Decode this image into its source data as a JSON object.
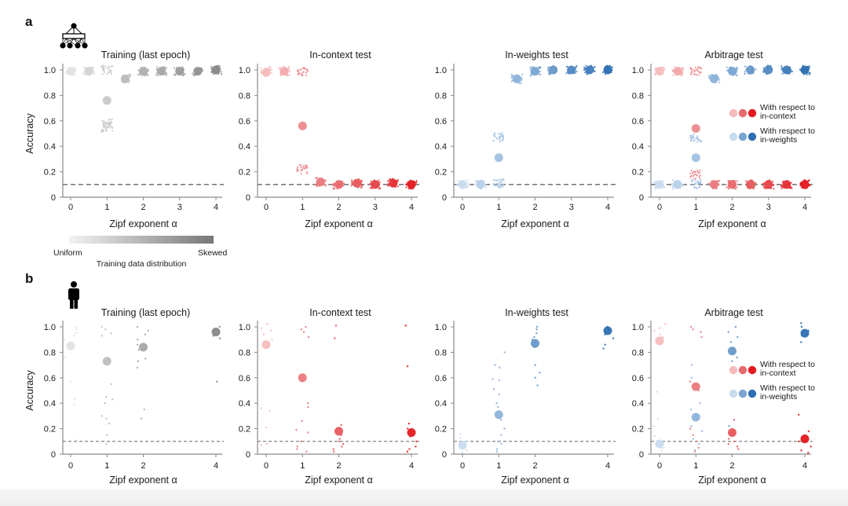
{
  "figure": {
    "panel_letters": [
      "a",
      "b"
    ],
    "row_icons": [
      "neural-network-icon",
      "person-icon"
    ],
    "colorbar": {
      "left_label": "Uniform",
      "right_label": "Skewed",
      "title": "Training data distribution"
    },
    "legend": {
      "in_context_label_1": "With respect to",
      "in_context_label_2": "in-context",
      "in_weights_label_1": "With respect to",
      "in_weights_label_2": "in-weights"
    },
    "colors": {
      "gray": [
        "#e2e2e2",
        "#d3d3d3",
        "#c8c8c8",
        "#bdbdbd",
        "#b0b0b0",
        "#a7a7a7",
        "#9c9c9c",
        "#929292",
        "#888888"
      ],
      "red": [
        "#f5bcbd",
        "#f2a9ab",
        "#ec8a8d",
        "#ea7a7e",
        "#e8696d",
        "#e6585c",
        "#e54449",
        "#e32f35",
        "#e31a20"
      ],
      "blue": [
        "#c9dcee",
        "#b8d0ea",
        "#a0c0e2",
        "#8db2da",
        "#7aa5d2",
        "#6898c9",
        "#5289c1",
        "#3f7cba",
        "#2e6fb2"
      ],
      "chance_line": "#666666"
    }
  },
  "chart_data": [
    {
      "id": "a-training",
      "type": "scatter",
      "title": "Training (last epoch)",
      "xlabel": "Zipf exponent α",
      "ylabel": "Accuracy",
      "xticks": [
        "0",
        "1",
        "2",
        "3",
        "4"
      ],
      "yticks": [
        "0",
        "0.2",
        "0.4",
        "0.6",
        "0.8",
        "1.0"
      ],
      "xlim": [
        -0.2,
        4.2
      ],
      "ylim": [
        0,
        1.05
      ],
      "chance": 0.1,
      "palette": "gray",
      "series": [
        {
          "name": "Training",
          "x": [
            0,
            0.5,
            1,
            1.5,
            2,
            2.5,
            3,
            3.5,
            4
          ],
          "means": [
            0.99,
            0.99,
            0.76,
            0.93,
            0.99,
            0.99,
            0.99,
            0.99,
            1.0
          ],
          "clusters": [
            [
              0.99
            ],
            [
              0.99
            ],
            [
              1.0,
              0.58,
              0.55
            ],
            [
              0.93
            ],
            [
              0.99
            ],
            [
              0.99
            ],
            [
              0.99
            ],
            [
              0.99
            ],
            [
              1.0
            ]
          ]
        }
      ]
    },
    {
      "id": "a-in-context",
      "type": "scatter",
      "title": "In-context test",
      "xlabel": "Zipf exponent α",
      "ylabel": "",
      "xticks": [
        "0",
        "1",
        "2",
        "3",
        "4"
      ],
      "yticks": [
        "0",
        "0.2",
        "0.4",
        "0.6",
        "0.8",
        "1.0"
      ],
      "xlim": [
        -0.2,
        4.2
      ],
      "ylim": [
        0,
        1.05
      ],
      "chance": 0.1,
      "palette": "red",
      "series": [
        {
          "name": "In-context",
          "x": [
            0,
            0.5,
            1,
            1.5,
            2,
            2.5,
            3,
            3.5,
            4
          ],
          "means": [
            0.98,
            0.99,
            0.56,
            0.12,
            0.1,
            0.11,
            0.1,
            0.11,
            0.1
          ],
          "clusters": [
            [
              0.99
            ],
            [
              0.99
            ],
            [
              0.99,
              0.22
            ],
            [
              0.12
            ],
            [
              0.1
            ],
            [
              0.11
            ],
            [
              0.1
            ],
            [
              0.11
            ],
            [
              0.1
            ]
          ]
        }
      ]
    },
    {
      "id": "a-in-weights",
      "type": "scatter",
      "title": "In-weights test",
      "xlabel": "Zipf exponent α",
      "ylabel": "",
      "xticks": [
        "0",
        "1",
        "2",
        "3",
        "4"
      ],
      "yticks": [
        "0",
        "0.2",
        "0.4",
        "0.6",
        "0.8",
        "1.0"
      ],
      "xlim": [
        -0.2,
        4.2
      ],
      "ylim": [
        0,
        1.05
      ],
      "chance": 0.1,
      "palette": "blue",
      "series": [
        {
          "name": "In-weights",
          "x": [
            0,
            0.5,
            1,
            1.5,
            2,
            2.5,
            3,
            3.5,
            4
          ],
          "means": [
            0.1,
            0.1,
            0.31,
            0.93,
            0.99,
            1.0,
            1.0,
            1.0,
            1.0
          ],
          "clusters": [
            [
              0.1
            ],
            [
              0.1
            ],
            [
              0.47,
              0.11
            ],
            [
              0.93
            ],
            [
              0.99
            ],
            [
              1.0
            ],
            [
              1.0
            ],
            [
              1.0
            ],
            [
              1.0
            ]
          ]
        }
      ]
    },
    {
      "id": "a-arbitrage",
      "type": "scatter",
      "title": "Arbitrage test",
      "xlabel": "Zipf exponent α",
      "ylabel": "",
      "xticks": [
        "0",
        "1",
        "2",
        "3",
        "4"
      ],
      "yticks": [
        "0",
        "0.2",
        "0.4",
        "0.6",
        "0.8",
        "1.0"
      ],
      "xlim": [
        -0.2,
        4.2
      ],
      "ylim": [
        0,
        1.05
      ],
      "chance": 0.1,
      "legend": "right",
      "series": [
        {
          "name": "With respect to in-context",
          "palette": "red",
          "x": [
            0,
            0.5,
            1,
            1.5,
            2,
            2.5,
            3,
            3.5,
            4
          ],
          "means": [
            0.99,
            0.99,
            0.54,
            0.1,
            0.1,
            0.1,
            0.1,
            0.1,
            0.1
          ],
          "clusters": [
            [
              0.99
            ],
            [
              0.99
            ],
            [
              0.99,
              0.18
            ],
            [
              0.1
            ],
            [
              0.1
            ],
            [
              0.1
            ],
            [
              0.1
            ],
            [
              0.1
            ],
            [
              0.1
            ]
          ]
        },
        {
          "name": "With respect to in-weights",
          "palette": "blue",
          "x": [
            0,
            0.5,
            1,
            1.5,
            2,
            2.5,
            3,
            3.5,
            4
          ],
          "means": [
            0.1,
            0.1,
            0.31,
            0.93,
            0.99,
            1.0,
            1.0,
            1.0,
            1.0
          ],
          "clusters": [
            [
              0.1
            ],
            [
              0.1
            ],
            [
              0.46,
              0.1
            ],
            [
              0.93
            ],
            [
              0.99
            ],
            [
              1.0
            ],
            [
              1.0
            ],
            [
              1.0
            ],
            [
              1.0
            ]
          ]
        }
      ]
    },
    {
      "id": "b-training",
      "type": "scatter",
      "title": "Training (last epoch)",
      "xlabel": "Zipf exponent α",
      "ylabel": "Accuracy",
      "xticks": [
        "0",
        "1",
        "2",
        "4"
      ],
      "xtick_values": [
        0,
        1,
        2,
        4
      ],
      "yticks": [
        "0",
        "0.2",
        "0.4",
        "0.6",
        "0.8",
        "1.0"
      ],
      "xlim": [
        -0.2,
        4.2
      ],
      "ylim": [
        0,
        1.05
      ],
      "chance": 0.1,
      "palette": "gray",
      "series": [
        {
          "name": "Training",
          "x": [
            0,
            1,
            2,
            4
          ],
          "means": [
            0.85,
            0.73,
            0.84,
            0.96
          ],
          "scatter": [
            [
              1.0,
              0.98,
              0.95,
              0.93,
              0.9,
              0.76,
              0.57,
              0.43,
              0.39,
              0.11
            ],
            [
              1.0,
              0.98,
              0.95,
              0.93,
              0.55,
              0.45,
              0.43,
              0.4,
              0.3,
              0.28,
              0.24,
              0.15,
              0.08
            ],
            [
              1.0,
              0.97,
              0.94,
              0.9,
              0.86,
              0.82,
              0.75,
              0.73,
              0.68,
              0.35,
              0.28
            ],
            [
              1.0,
              0.98,
              0.95,
              0.93,
              0.91,
              0.57
            ]
          ]
        }
      ]
    },
    {
      "id": "b-in-context",
      "type": "scatter",
      "title": "In-context test",
      "xlabel": "Zipf exponent α",
      "ylabel": "",
      "xticks": [
        "0",
        "1",
        "2",
        "4"
      ],
      "xtick_values": [
        0,
        1,
        2,
        4
      ],
      "yticks": [
        "0",
        "0.2",
        "0.4",
        "0.6",
        "0.8",
        "1.0"
      ],
      "xlim": [
        -0.2,
        4.2
      ],
      "ylim": [
        0,
        1.05
      ],
      "chance": 0.1,
      "palette": "red",
      "series": [
        {
          "name": "In-context",
          "x": [
            0,
            1,
            2,
            4
          ],
          "means": [
            0.86,
            0.6,
            0.18,
            0.17
          ],
          "scatter": [
            [
              1.02,
              0.99,
              0.97,
              0.94,
              0.9,
              0.36,
              0.34,
              0.21,
              0.08,
              0.07
            ],
            [
              1.0,
              0.98,
              0.96,
              0.92,
              0.4,
              0.37,
              0.26,
              0.19,
              0.17,
              0.1,
              0.06,
              0.04,
              0.02
            ],
            [
              1.01,
              0.91,
              0.23,
              0.15,
              0.12,
              0.1,
              0.08,
              0.06,
              0.04,
              0.02
            ],
            [
              1.01,
              0.69,
              0.24,
              0.2,
              0.14,
              0.1,
              0.06,
              0.04,
              0.02
            ]
          ]
        }
      ]
    },
    {
      "id": "b-in-weights",
      "type": "scatter",
      "title": "In-weights test",
      "xlabel": "Zipf exponent α",
      "ylabel": "",
      "xticks": [
        "0",
        "1",
        "2",
        "4"
      ],
      "xtick_values": [
        0,
        1,
        2,
        4
      ],
      "yticks": [
        "0",
        "0.2",
        "0.4",
        "0.6",
        "0.8",
        "1.0"
      ],
      "xlim": [
        -0.2,
        4.2
      ],
      "ylim": [
        0,
        1.05
      ],
      "chance": 0.1,
      "palette": "blue",
      "series": [
        {
          "name": "In-weights",
          "x": [
            0,
            1,
            2,
            4
          ],
          "means": [
            0.07,
            0.31,
            0.87,
            0.97
          ],
          "scatter": [
            [
              0.16,
              0.13,
              0.1,
              0.06,
              0.03,
              0.01
            ],
            [
              0.8,
              0.7,
              0.68,
              0.59,
              0.58,
              0.51,
              0.47,
              0.4,
              0.37,
              0.27,
              0.2,
              0.15,
              0.1,
              0.08,
              0.04,
              0.02
            ],
            [
              1.0,
              0.98,
              0.95,
              0.92,
              0.9,
              0.84,
              0.7,
              0.64,
              0.6,
              0.54
            ],
            [
              1.0,
              0.98,
              0.94,
              0.91,
              0.86,
              0.83
            ]
          ]
        }
      ]
    },
    {
      "id": "b-arbitrage",
      "type": "scatter",
      "title": "Arbitrage test",
      "xlabel": "Zipf exponent α",
      "ylabel": "",
      "xticks": [
        "0",
        "1",
        "2",
        "4"
      ],
      "xtick_values": [
        0,
        1,
        2,
        4
      ],
      "yticks": [
        "0",
        "0.2",
        "0.4",
        "0.6",
        "0.8",
        "1.0"
      ],
      "xlim": [
        -0.2,
        4.2
      ],
      "ylim": [
        0,
        1.05
      ],
      "chance": 0.1,
      "legend": "right",
      "series": [
        {
          "name": "With respect to in-context",
          "palette": "red",
          "x": [
            0,
            1,
            2,
            4
          ],
          "means": [
            0.89,
            0.53,
            0.17,
            0.12
          ],
          "scatter": [
            [
              1.02,
              0.99,
              0.97,
              0.94,
              0.92
            ],
            [
              1.0,
              0.98,
              0.96,
              0.92,
              0.57,
              0.5,
              0.2,
              0.15,
              0.1,
              0.05,
              0.02
            ],
            [
              0.27,
              0.12,
              0.1,
              0.08,
              0.06,
              0.04
            ],
            [
              0.31,
              0.18,
              0.14,
              0.1,
              0.06,
              0.03,
              0.01
            ]
          ]
        },
        {
          "name": "With respect to in-weights",
          "palette": "blue",
          "x": [
            0,
            1,
            2,
            4
          ],
          "means": [
            0.08,
            0.29,
            0.81,
            0.95
          ],
          "scatter": [
            [
              0.49,
              0.28,
              0.22,
              0.14,
              0.1,
              0.05,
              0.03
            ],
            [
              0.7,
              0.6,
              0.4,
              0.35,
              0.22,
              0.18,
              0.12,
              0.08,
              0.03
            ],
            [
              1.0,
              0.96,
              0.92,
              0.88,
              0.76,
              0.73,
              0.22
            ],
            [
              1.03,
              1.0,
              0.97,
              0.93,
              0.88
            ]
          ]
        }
      ]
    }
  ]
}
